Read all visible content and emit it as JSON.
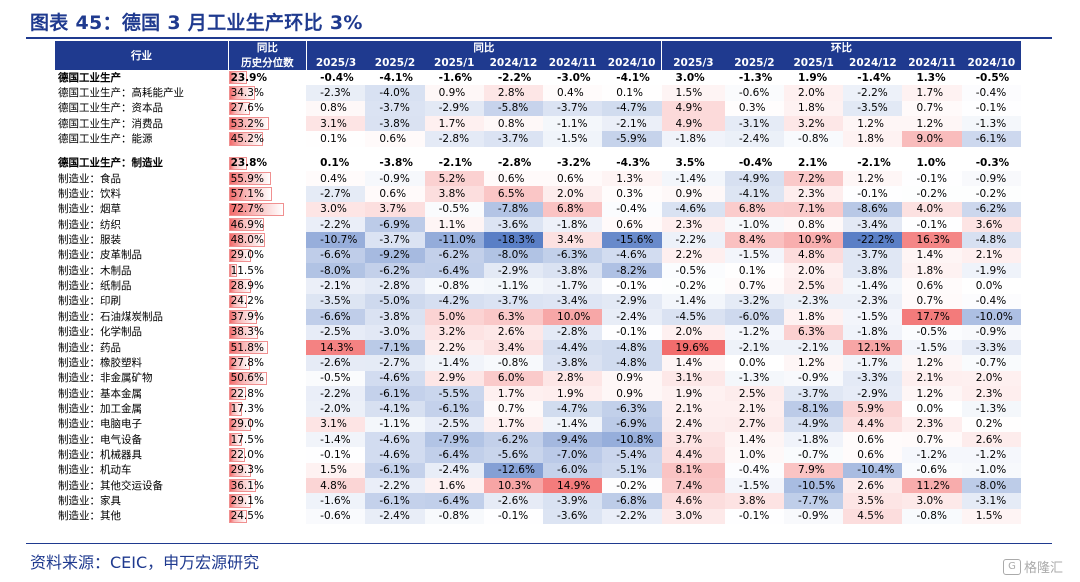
{
  "title": "图表 45：德国 3 月工业生产环比 3%",
  "source": "资料来源：CEIC，申万宏源研究",
  "watermark": {
    "logo": "G",
    "text": "格隆汇"
  },
  "header": {
    "industry": "行业",
    "pct_line1": "同比",
    "pct_line2": "历史分位数",
    "yoy_group": "同比",
    "mom_group": "环比",
    "periods": [
      "2025/3",
      "2025/2",
      "2025/1",
      "2024/12",
      "2024/11",
      "2024/10"
    ]
  },
  "colors": {
    "header_bg": "#1f3a8f",
    "pos_max": "#f26a6a",
    "neg_max": "#5a7fc6",
    "bar": "#f26a6a"
  },
  "rows": [
    {
      "name": "德国工业生产",
      "bold": true,
      "pct": "23.9%",
      "pctv": 23.9,
      "yoy": [
        "-0.4%",
        "-4.1%",
        "-1.6%",
        "-2.2%",
        "-3.0%",
        "-4.1%"
      ],
      "mom": [
        "3.0%",
        "-1.3%",
        "1.9%",
        "-1.4%",
        "1.3%",
        "-0.5%"
      ]
    },
    {
      "name": "德国工业生产：高耗能产业",
      "pct": "34.3%",
      "pctv": 34.3,
      "yoy": [
        "-2.3%",
        "-4.0%",
        "0.9%",
        "2.8%",
        "0.4%",
        "0.1%"
      ],
      "mom": [
        "1.5%",
        "-0.6%",
        "2.0%",
        "-2.2%",
        "1.7%",
        "-0.4%"
      ]
    },
    {
      "name": "德国工业生产：资本品",
      "pct": "27.6%",
      "pctv": 27.6,
      "yoy": [
        "0.8%",
        "-3.7%",
        "-2.9%",
        "-5.8%",
        "-3.7%",
        "-4.7%"
      ],
      "mom": [
        "4.9%",
        "0.3%",
        "1.8%",
        "-3.5%",
        "0.7%",
        "-0.1%"
      ]
    },
    {
      "name": "德国工业生产：消费品",
      "pct": "53.2%",
      "pctv": 53.2,
      "yoy": [
        "3.1%",
        "-3.8%",
        "1.7%",
        "0.8%",
        "-1.1%",
        "-2.1%"
      ],
      "mom": [
        "4.9%",
        "-3.1%",
        "3.2%",
        "1.2%",
        "1.2%",
        "-1.3%"
      ]
    },
    {
      "name": "德国工业生产：能源",
      "pct": "45.2%",
      "pctv": 45.2,
      "yoy": [
        "0.1%",
        "0.6%",
        "-2.8%",
        "-3.7%",
        "-1.5%",
        "-5.9%"
      ],
      "mom": [
        "-1.8%",
        "-2.4%",
        "-0.8%",
        "1.8%",
        "9.0%",
        "-6.1%"
      ]
    },
    {
      "gap": true
    },
    {
      "name": "德国工业生产：制造业",
      "bold": true,
      "pct": "23.8%",
      "pctv": 23.8,
      "yoy": [
        "0.1%",
        "-3.8%",
        "-2.1%",
        "-2.8%",
        "-3.2%",
        "-4.3%"
      ],
      "mom": [
        "3.5%",
        "-0.4%",
        "2.1%",
        "-2.1%",
        "1.0%",
        "-0.3%"
      ]
    },
    {
      "name": "制造业：食品",
      "pct": "55.9%",
      "pctv": 55.9,
      "yoy": [
        "0.4%",
        "-0.9%",
        "5.2%",
        "0.6%",
        "0.6%",
        "1.3%"
      ],
      "mom": [
        "-1.4%",
        "-4.9%",
        "7.2%",
        "1.2%",
        "-0.1%",
        "-0.9%"
      ]
    },
    {
      "name": "制造业：饮料",
      "pct": "57.1%",
      "pctv": 57.1,
      "yoy": [
        "-2.7%",
        "0.6%",
        "3.8%",
        "6.5%",
        "2.0%",
        "0.3%"
      ],
      "mom": [
        "0.9%",
        "-4.1%",
        "2.3%",
        "-0.1%",
        "-0.2%",
        "-0.2%"
      ]
    },
    {
      "name": "制造业：烟草",
      "pct": "72.7%",
      "pctv": 72.7,
      "yoy": [
        "3.0%",
        "3.7%",
        "-0.5%",
        "-7.8%",
        "6.8%",
        "-0.4%"
      ],
      "mom": [
        "-4.6%",
        "6.8%",
        "7.1%",
        "-8.6%",
        "4.0%",
        "-6.2%"
      ]
    },
    {
      "name": "制造业：纺织",
      "pct": "46.9%",
      "pctv": 46.9,
      "yoy": [
        "-2.2%",
        "-6.9%",
        "1.1%",
        "-3.6%",
        "-1.8%",
        "0.6%"
      ],
      "mom": [
        "2.3%",
        "-1.0%",
        "0.8%",
        "-3.4%",
        "-0.1%",
        "3.6%"
      ]
    },
    {
      "name": "制造业：服装",
      "pct": "48.0%",
      "pctv": 48.0,
      "yoy": [
        "-10.7%",
        "-3.7%",
        "-11.0%",
        "-18.3%",
        "3.4%",
        "-15.6%"
      ],
      "mom": [
        "-2.2%",
        "8.4%",
        "10.9%",
        "-22.2%",
        "16.3%",
        "-4.8%"
      ]
    },
    {
      "name": "制造业：皮革制品",
      "pct": "29.0%",
      "pctv": 29.0,
      "yoy": [
        "-6.6%",
        "-9.2%",
        "-6.2%",
        "-8.0%",
        "-6.3%",
        "-4.6%"
      ],
      "mom": [
        "2.2%",
        "-1.5%",
        "4.8%",
        "-3.7%",
        "1.4%",
        "2.1%"
      ]
    },
    {
      "name": "制造业：木制品",
      "pct": "11.5%",
      "pctv": 11.5,
      "yoy": [
        "-8.0%",
        "-6.2%",
        "-6.4%",
        "-2.9%",
        "-3.8%",
        "-8.2%"
      ],
      "mom": [
        "-0.5%",
        "0.1%",
        "2.0%",
        "-3.8%",
        "1.8%",
        "-1.9%"
      ]
    },
    {
      "name": "制造业：纸制品",
      "pct": "28.9%",
      "pctv": 28.9,
      "yoy": [
        "-2.1%",
        "-2.8%",
        "-0.8%",
        "-1.1%",
        "-1.7%",
        "-0.1%"
      ],
      "mom": [
        "-0.2%",
        "0.7%",
        "2.5%",
        "-1.4%",
        "0.6%",
        "0.0%"
      ]
    },
    {
      "name": "制造业：印刷",
      "pct": "24.2%",
      "pctv": 24.2,
      "yoy": [
        "-3.5%",
        "-5.0%",
        "-4.2%",
        "-3.7%",
        "-3.4%",
        "-2.9%"
      ],
      "mom": [
        "-1.4%",
        "-3.2%",
        "-2.3%",
        "-2.3%",
        "0.7%",
        "-0.4%"
      ]
    },
    {
      "name": "制造业：石油煤炭制品",
      "pct": "37.9%",
      "pctv": 37.9,
      "yoy": [
        "-6.6%",
        "-3.8%",
        "5.0%",
        "6.3%",
        "10.0%",
        "-2.4%"
      ],
      "mom": [
        "-4.5%",
        "-6.0%",
        "1.8%",
        "-1.5%",
        "17.7%",
        "-10.0%"
      ]
    },
    {
      "name": "制造业：化学制品",
      "pct": "38.3%",
      "pctv": 38.3,
      "yoy": [
        "-2.5%",
        "-3.0%",
        "3.2%",
        "2.6%",
        "-2.8%",
        "-0.1%"
      ],
      "mom": [
        "2.0%",
        "-1.2%",
        "6.3%",
        "-1.8%",
        "-0.5%",
        "-0.9%"
      ]
    },
    {
      "name": "制造业：药品",
      "pct": "51.8%",
      "pctv": 51.8,
      "yoy": [
        "14.3%",
        "-7.1%",
        "2.2%",
        "3.4%",
        "-4.4%",
        "-4.8%"
      ],
      "mom": [
        "19.6%",
        "-2.1%",
        "-2.1%",
        "12.1%",
        "-1.5%",
        "-3.3%"
      ]
    },
    {
      "name": "制造业：橡胶塑料",
      "pct": "27.8%",
      "pctv": 27.8,
      "yoy": [
        "-2.6%",
        "-2.7%",
        "-1.4%",
        "-0.8%",
        "-3.8%",
        "-4.8%"
      ],
      "mom": [
        "1.4%",
        "0.0%",
        "1.2%",
        "-1.7%",
        "1.2%",
        "-0.7%"
      ]
    },
    {
      "name": "制造业：非金属矿物",
      "pct": "50.6%",
      "pctv": 50.6,
      "yoy": [
        "-0.5%",
        "-4.6%",
        "2.9%",
        "6.0%",
        "2.8%",
        "0.9%"
      ],
      "mom": [
        "3.1%",
        "-1.3%",
        "-0.9%",
        "-3.3%",
        "2.1%",
        "2.0%"
      ]
    },
    {
      "name": "制造业：基本金属",
      "pct": "22.8%",
      "pctv": 22.8,
      "yoy": [
        "-2.2%",
        "-6.1%",
        "-5.5%",
        "1.7%",
        "1.9%",
        "0.9%"
      ],
      "mom": [
        "1.9%",
        "2.5%",
        "-3.7%",
        "-2.9%",
        "1.2%",
        "2.3%"
      ]
    },
    {
      "name": "制造业：加工金属",
      "pct": "17.3%",
      "pctv": 17.3,
      "yoy": [
        "-2.0%",
        "-4.1%",
        "-6.1%",
        "0.7%",
        "-4.7%",
        "-6.3%"
      ],
      "mom": [
        "2.1%",
        "2.1%",
        "-8.1%",
        "5.9%",
        "0.0%",
        "-1.3%"
      ]
    },
    {
      "name": "制造业：电脑电子",
      "pct": "29.0%",
      "pctv": 29.0,
      "yoy": [
        "3.1%",
        "-1.1%",
        "-2.5%",
        "1.7%",
        "-1.4%",
        "-6.9%"
      ],
      "mom": [
        "2.4%",
        "2.7%",
        "-4.9%",
        "4.4%",
        "2.3%",
        "0.2%"
      ]
    },
    {
      "name": "制造业：电气设备",
      "pct": "17.5%",
      "pctv": 17.5,
      "yoy": [
        "-1.4%",
        "-4.6%",
        "-7.9%",
        "-6.2%",
        "-9.4%",
        "-10.8%"
      ],
      "mom": [
        "3.7%",
        "1.4%",
        "-1.8%",
        "0.6%",
        "0.7%",
        "2.6%"
      ]
    },
    {
      "name": "制造业：机械器具",
      "pct": "22.0%",
      "pctv": 22.0,
      "yoy": [
        "-0.1%",
        "-4.6%",
        "-6.4%",
        "-5.6%",
        "-7.0%",
        "-5.4%"
      ],
      "mom": [
        "4.4%",
        "1.0%",
        "-0.7%",
        "0.6%",
        "-1.2%",
        "-1.2%"
      ]
    },
    {
      "name": "制造业：机动车",
      "pct": "29.3%",
      "pctv": 29.3,
      "yoy": [
        "1.5%",
        "-6.1%",
        "-2.4%",
        "-12.6%",
        "-6.0%",
        "-5.1%"
      ],
      "mom": [
        "8.1%",
        "-0.4%",
        "7.9%",
        "-10.4%",
        "-0.6%",
        "-1.0%"
      ]
    },
    {
      "name": "制造业：其他交运设备",
      "pct": "36.1%",
      "pctv": 36.1,
      "yoy": [
        "4.8%",
        "-2.2%",
        "1.6%",
        "10.3%",
        "14.9%",
        "-0.2%"
      ],
      "mom": [
        "7.4%",
        "-1.5%",
        "-10.5%",
        "2.6%",
        "11.2%",
        "-8.0%"
      ]
    },
    {
      "name": "制造业：家具",
      "pct": "29.1%",
      "pctv": 29.1,
      "yoy": [
        "-1.6%",
        "-6.1%",
        "-6.4%",
        "-2.6%",
        "-3.9%",
        "-6.8%"
      ],
      "mom": [
        "4.6%",
        "3.8%",
        "-7.7%",
        "3.5%",
        "3.0%",
        "-3.1%"
      ]
    },
    {
      "name": "制造业：其他",
      "pct": "24.5%",
      "pctv": 24.5,
      "yoy": [
        "-0.6%",
        "-2.4%",
        "-0.8%",
        "-0.1%",
        "-3.6%",
        "-2.2%"
      ],
      "mom": [
        "3.0%",
        "-0.1%",
        "-0.9%",
        "4.5%",
        "-0.8%",
        "1.5%"
      ]
    }
  ]
}
